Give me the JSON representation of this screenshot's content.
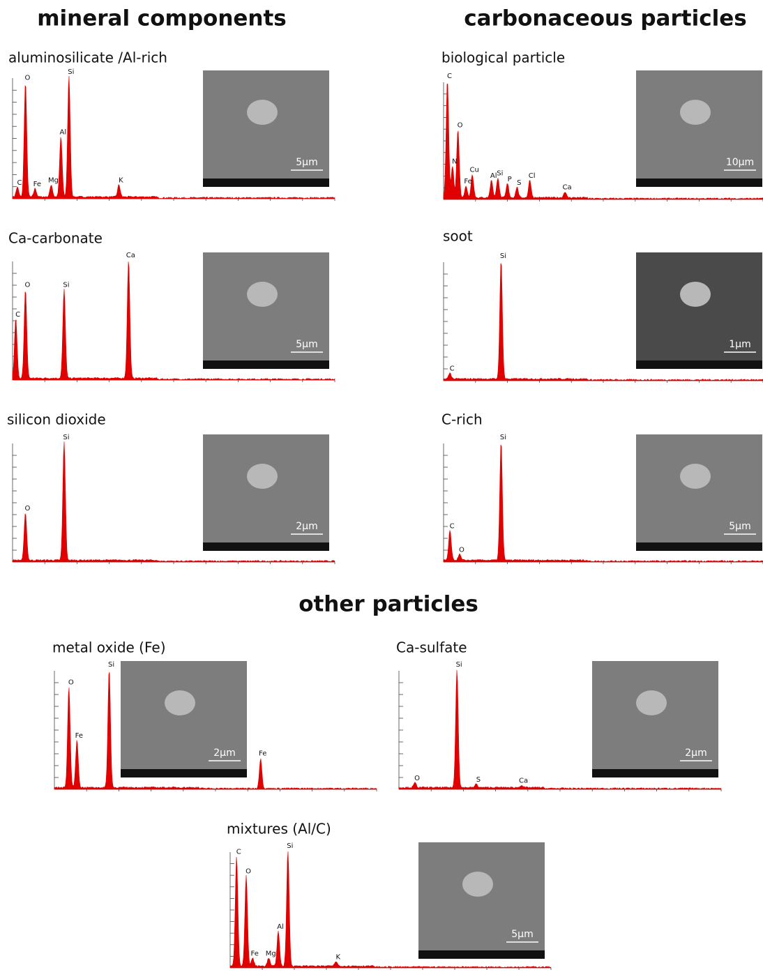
{
  "sections": [
    {
      "title": "mineral components",
      "panels": [
        {
          "label": "aluminosilicate /Al-rich",
          "peaks": [
            "C",
            "O",
            "Fe",
            "Mg",
            "Al",
            "Si",
            "K"
          ],
          "scale": "5µm"
        },
        {
          "label": "Ca-carbonate",
          "peaks": [
            "C",
            "O",
            "Si",
            "Ca"
          ],
          "scale": "5µm"
        },
        {
          "label": "silicon dioxide",
          "peaks": [
            "O",
            "Si"
          ],
          "scale": "2µm"
        }
      ]
    },
    {
      "title": "carbonaceous particles",
      "panels": [
        {
          "label": "biological particle",
          "peaks": [
            "C",
            "N",
            "O",
            "Fe",
            "Cu",
            "Al",
            "Si",
            "P",
            "S",
            "Cl",
            "Ca"
          ],
          "scale": "10µm"
        },
        {
          "label": "soot",
          "peaks": [
            "C",
            "Si"
          ],
          "scale": "1µm"
        },
        {
          "label": "C-rich",
          "peaks": [
            "C",
            "O",
            "Si"
          ],
          "scale": "5µm"
        }
      ]
    },
    {
      "title": "other particles",
      "panels": [
        {
          "label": "metal oxide (Fe)",
          "peaks": [
            "O",
            "Fe",
            "Si",
            "Fe"
          ],
          "scale": "2µm"
        },
        {
          "label": "Ca-sulfate",
          "peaks": [
            "O",
            "Si",
            "S",
            "Ca"
          ],
          "scale": "2µm"
        },
        {
          "label": "mixtures (Al/C)",
          "peaks": [
            "C",
            "O",
            "Fe",
            "Mg",
            "Al",
            "Si",
            "K"
          ],
          "scale": "5µm"
        }
      ]
    }
  ]
}
